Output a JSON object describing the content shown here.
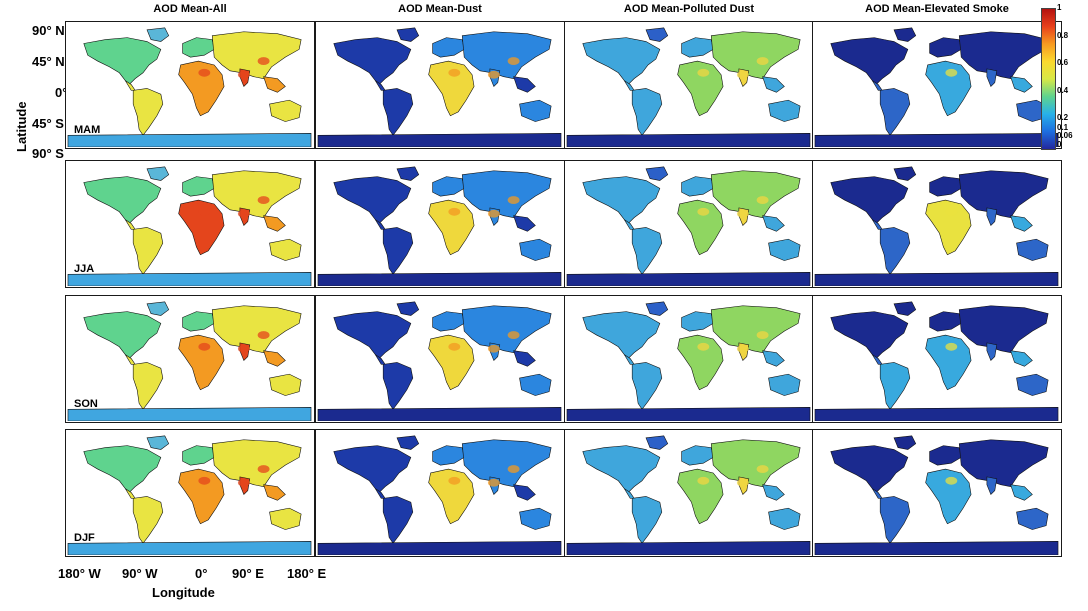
{
  "columns": [
    {
      "title": "AOD Mean-All",
      "type": "all"
    },
    {
      "title": "AOD Mean-Dust",
      "type": "dust"
    },
    {
      "title": "AOD Mean-Polluted Dust",
      "type": "polluted"
    },
    {
      "title": "AOD Mean-Elevated Smoke",
      "type": "smoke"
    }
  ],
  "rows": [
    {
      "season": "MAM"
    },
    {
      "season": "JJA"
    },
    {
      "season": "SON"
    },
    {
      "season": "DJF"
    }
  ],
  "axes": {
    "y_label": "Latitude",
    "x_label": "Longitude",
    "lat_ticks": [
      "90° N",
      "45° N",
      "0°",
      "45° S",
      "90° S"
    ],
    "lon_ticks": [
      "180° W",
      "90° W",
      "0°",
      "90° E",
      "180° E"
    ]
  },
  "colorbar": {
    "ticks": [
      "1",
      "0.8",
      "0.6",
      "0.4",
      "0.2",
      "0.1",
      "0.06",
      "0"
    ],
    "colors": [
      "#22289e",
      "#1e6ee0",
      "#27b1e8",
      "#5fd38e",
      "#d8e846",
      "#fbd92f",
      "#f79a21",
      "#e8401c",
      "#b4120f"
    ]
  }
}
